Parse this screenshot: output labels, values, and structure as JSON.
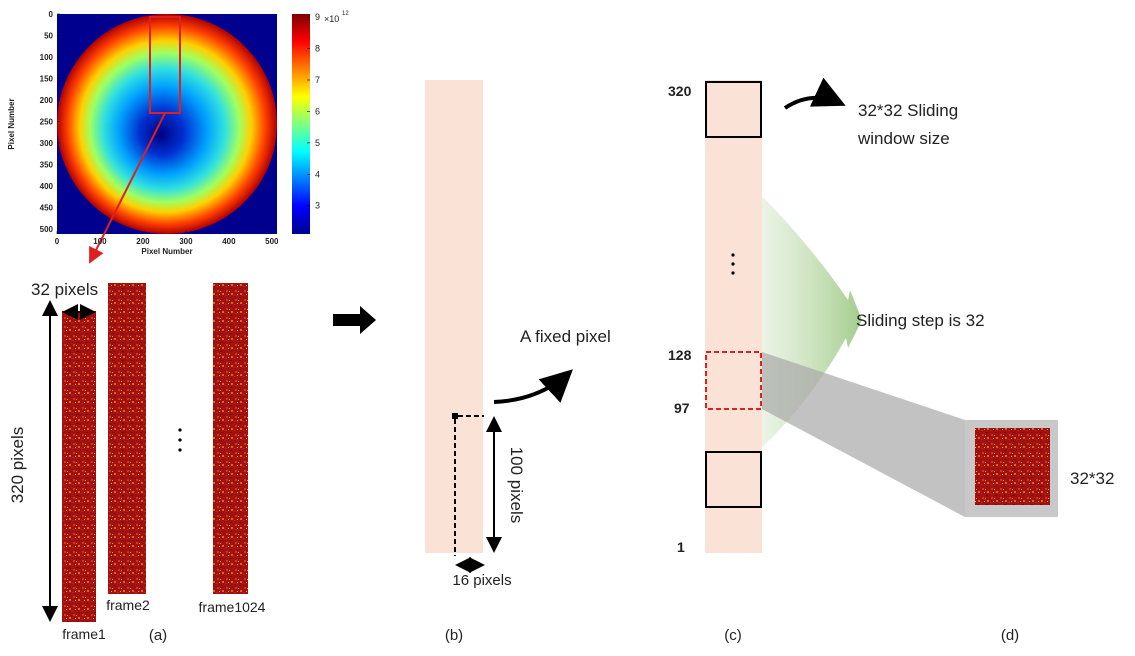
{
  "heatmap": {
    "x_label": "Pixel Number",
    "y_label": "Pixel Number",
    "xlim": [
      0,
      512
    ],
    "ylim": [
      0,
      512
    ],
    "xticks": [
      0,
      100,
      200,
      300,
      400,
      500
    ],
    "yticks": [
      0,
      50,
      100,
      150,
      200,
      250,
      300,
      350,
      400,
      450,
      500
    ],
    "colorbar": {
      "lim": [
        2.1,
        9.1
      ],
      "ticks": [
        3,
        4,
        5,
        6,
        7,
        8,
        9
      ],
      "multiplier": "×10",
      "exponent": "12"
    }
  },
  "panel_a": {
    "width_label": "32 pixels",
    "height_label": "320 pixels",
    "frames": [
      "frame1",
      "frame2",
      "frame1024"
    ],
    "caption": "(a)"
  },
  "panel_b": {
    "annotation": "A fixed pixel",
    "height_label": "100 pixels",
    "width_label": "16 pixels",
    "caption": "(b)"
  },
  "panel_c": {
    "row_labels": [
      "320",
      "128",
      "97",
      "1"
    ],
    "window_label": [
      "32*32 Sliding",
      "window size"
    ],
    "step_label": "Sliding step is 32",
    "caption": "(c)"
  },
  "panel_d": {
    "size_label": "32*32",
    "caption": "(d)"
  }
}
